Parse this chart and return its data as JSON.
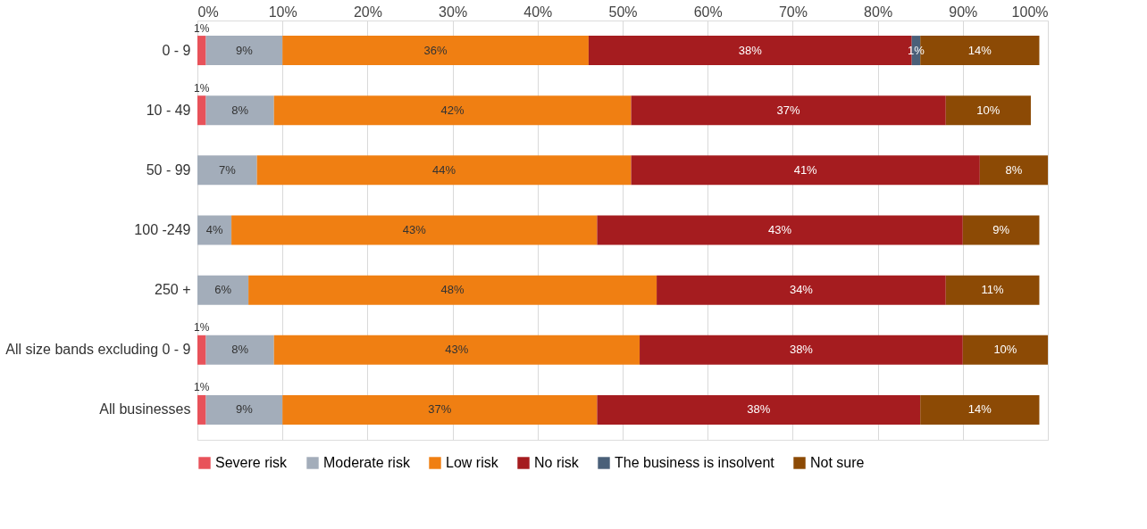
{
  "chart_data": {
    "type": "bar",
    "orientation": "horizontal",
    "stacked": true,
    "legend": "bottom",
    "grid": "x",
    "categories": [
      "0 - 9",
      "10 - 49",
      "50 - 99",
      "100 -249",
      "250 +",
      "All size bands excluding 0 - 9",
      "All businesses"
    ],
    "xlim": [
      0,
      100
    ],
    "xticks": [
      {
        "value": 0,
        "label": "0%"
      },
      {
        "value": 10,
        "label": "10%"
      },
      {
        "value": 20,
        "label": "20%"
      },
      {
        "value": 30,
        "label": "30%"
      },
      {
        "value": 40,
        "label": "40%"
      },
      {
        "value": 50,
        "label": "50%"
      },
      {
        "value": 60,
        "label": "60%"
      },
      {
        "value": 70,
        "label": "70%"
      },
      {
        "value": 80,
        "label": "80%"
      },
      {
        "value": 90,
        "label": "90%"
      },
      {
        "value": 100,
        "label": "100%"
      }
    ],
    "series": [
      {
        "name": "Severe risk",
        "color": "#e8525a",
        "values": [
          1,
          1,
          null,
          null,
          null,
          1,
          1
        ],
        "value_labels": [
          "1%",
          "1%",
          null,
          null,
          null,
          "1%",
          "1%"
        ]
      },
      {
        "name": "Moderate risk",
        "color": "#a3adba",
        "values": [
          9,
          8,
          7,
          4,
          6,
          8,
          9
        ],
        "value_labels": [
          "9%",
          "8%",
          "7%",
          "4%",
          "6%",
          "8%",
          "9%"
        ]
      },
      {
        "name": "Low risk",
        "color": "#f07f12",
        "values": [
          36,
          42,
          44,
          43,
          48,
          43,
          37
        ],
        "value_labels": [
          "36%",
          "42%",
          "44%",
          "43%",
          "48%",
          "43%",
          "37%"
        ]
      },
      {
        "name": "No risk",
        "color": "#a51c1f",
        "values": [
          38,
          37,
          41,
          43,
          34,
          38,
          38
        ],
        "value_labels": [
          "38%",
          "37%",
          "41%",
          "43%",
          "34%",
          "38%",
          "38%"
        ]
      },
      {
        "name": "The business is insolvent",
        "color": "#4a6079",
        "values": [
          1,
          null,
          null,
          null,
          null,
          null,
          null
        ],
        "value_labels": [
          "1%",
          null,
          null,
          null,
          null,
          null,
          null
        ]
      },
      {
        "name": "Not sure",
        "color": "#8c4a05",
        "values": [
          14,
          10,
          8,
          9,
          11,
          10,
          14
        ],
        "value_labels": [
          "14%",
          "10%",
          "8%",
          "9%",
          "11%",
          "10%",
          "14%"
        ]
      }
    ]
  }
}
